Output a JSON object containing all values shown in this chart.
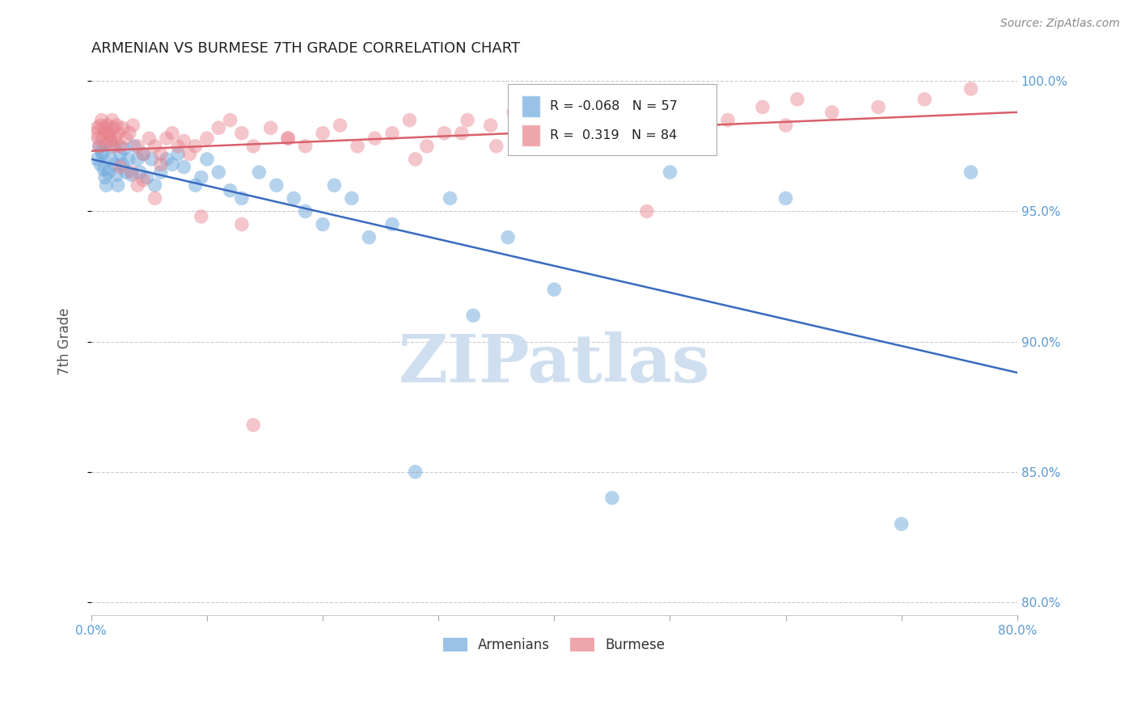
{
  "title": "ARMENIAN VS BURMESE 7TH GRADE CORRELATION CHART",
  "source": "Source: ZipAtlas.com",
  "ylabel_label": "7th Grade",
  "xlim": [
    0.0,
    0.8
  ],
  "ylim": [
    0.795,
    1.005
  ],
  "xtick_positions": [
    0.0,
    0.1,
    0.2,
    0.3,
    0.4,
    0.5,
    0.6,
    0.7,
    0.8
  ],
  "xtick_labels": [
    "0.0%",
    "",
    "",
    "",
    "",
    "",
    "",
    "",
    "80.0%"
  ],
  "ytick_positions": [
    0.8,
    0.85,
    0.9,
    0.95,
    1.0
  ],
  "ytick_labels": [
    "80.0%",
    "85.0%",
    "90.0%",
    "95.0%",
    "100.0%"
  ],
  "r_armenian": -0.068,
  "n_armenian": 57,
  "r_burmese": 0.319,
  "n_burmese": 84,
  "armenian_color": "#6fa8dc",
  "burmese_color": "#e8808a",
  "trend_armenian_color": "#3a6bbf",
  "trend_burmese_color": "#d9606a",
  "tick_color": "#5b9bd5",
  "armenian_x": [
    0.005,
    0.007,
    0.008,
    0.009,
    0.01,
    0.011,
    0.012,
    0.013,
    0.015,
    0.017,
    0.018,
    0.02,
    0.022,
    0.023,
    0.025,
    0.027,
    0.028,
    0.03,
    0.032,
    0.035,
    0.037,
    0.04,
    0.042,
    0.045,
    0.048,
    0.052,
    0.055,
    0.06,
    0.065,
    0.07,
    0.075,
    0.08,
    0.09,
    0.095,
    0.1,
    0.11,
    0.12,
    0.13,
    0.145,
    0.16,
    0.175,
    0.185,
    0.2,
    0.21,
    0.225,
    0.24,
    0.26,
    0.28,
    0.31,
    0.33,
    0.36,
    0.4,
    0.45,
    0.5,
    0.6,
    0.7,
    0.76
  ],
  "armenian_y": [
    0.97,
    0.975,
    0.968,
    0.973,
    0.972,
    0.966,
    0.963,
    0.96,
    0.965,
    0.97,
    0.975,
    0.968,
    0.964,
    0.96,
    0.972,
    0.968,
    0.974,
    0.965,
    0.97,
    0.964,
    0.975,
    0.97,
    0.965,
    0.972,
    0.963,
    0.97,
    0.96,
    0.965,
    0.97,
    0.968,
    0.972,
    0.967,
    0.96,
    0.963,
    0.97,
    0.965,
    0.958,
    0.955,
    0.965,
    0.96,
    0.955,
    0.95,
    0.945,
    0.96,
    0.955,
    0.94,
    0.945,
    0.85,
    0.955,
    0.91,
    0.94,
    0.92,
    0.84,
    0.965,
    0.955,
    0.83,
    0.965
  ],
  "burmese_x": [
    0.003,
    0.005,
    0.006,
    0.007,
    0.008,
    0.009,
    0.01,
    0.011,
    0.012,
    0.013,
    0.014,
    0.015,
    0.016,
    0.017,
    0.018,
    0.019,
    0.02,
    0.021,
    0.022,
    0.023,
    0.025,
    0.027,
    0.03,
    0.033,
    0.036,
    0.04,
    0.045,
    0.05,
    0.055,
    0.06,
    0.065,
    0.07,
    0.075,
    0.08,
    0.085,
    0.09,
    0.1,
    0.11,
    0.12,
    0.13,
    0.14,
    0.155,
    0.17,
    0.185,
    0.2,
    0.215,
    0.23,
    0.245,
    0.26,
    0.275,
    0.29,
    0.305,
    0.325,
    0.345,
    0.365,
    0.385,
    0.41,
    0.435,
    0.46,
    0.49,
    0.52,
    0.55,
    0.58,
    0.61,
    0.64,
    0.68,
    0.72,
    0.76,
    0.48,
    0.095,
    0.13,
    0.17,
    0.5,
    0.35,
    0.28,
    0.32,
    0.6,
    0.04,
    0.055,
    0.14,
    0.025,
    0.035,
    0.045,
    0.06
  ],
  "burmese_y": [
    0.98,
    0.982,
    0.978,
    0.975,
    0.983,
    0.985,
    0.978,
    0.982,
    0.98,
    0.976,
    0.983,
    0.98,
    0.979,
    0.977,
    0.985,
    0.982,
    0.975,
    0.978,
    0.983,
    0.98,
    0.975,
    0.982,
    0.978,
    0.98,
    0.983,
    0.975,
    0.972,
    0.978,
    0.975,
    0.972,
    0.978,
    0.98,
    0.975,
    0.977,
    0.972,
    0.975,
    0.978,
    0.982,
    0.985,
    0.98,
    0.975,
    0.982,
    0.978,
    0.975,
    0.98,
    0.983,
    0.975,
    0.978,
    0.98,
    0.985,
    0.975,
    0.98,
    0.985,
    0.983,
    0.988,
    0.98,
    0.985,
    0.983,
    0.98,
    0.985,
    0.988,
    0.985,
    0.99,
    0.993,
    0.988,
    0.99,
    0.993,
    0.997,
    0.95,
    0.948,
    0.945,
    0.978,
    0.975,
    0.975,
    0.97,
    0.98,
    0.983,
    0.96,
    0.955,
    0.868,
    0.967,
    0.965,
    0.962,
    0.968
  ],
  "watermark_color": "#d0dff0"
}
